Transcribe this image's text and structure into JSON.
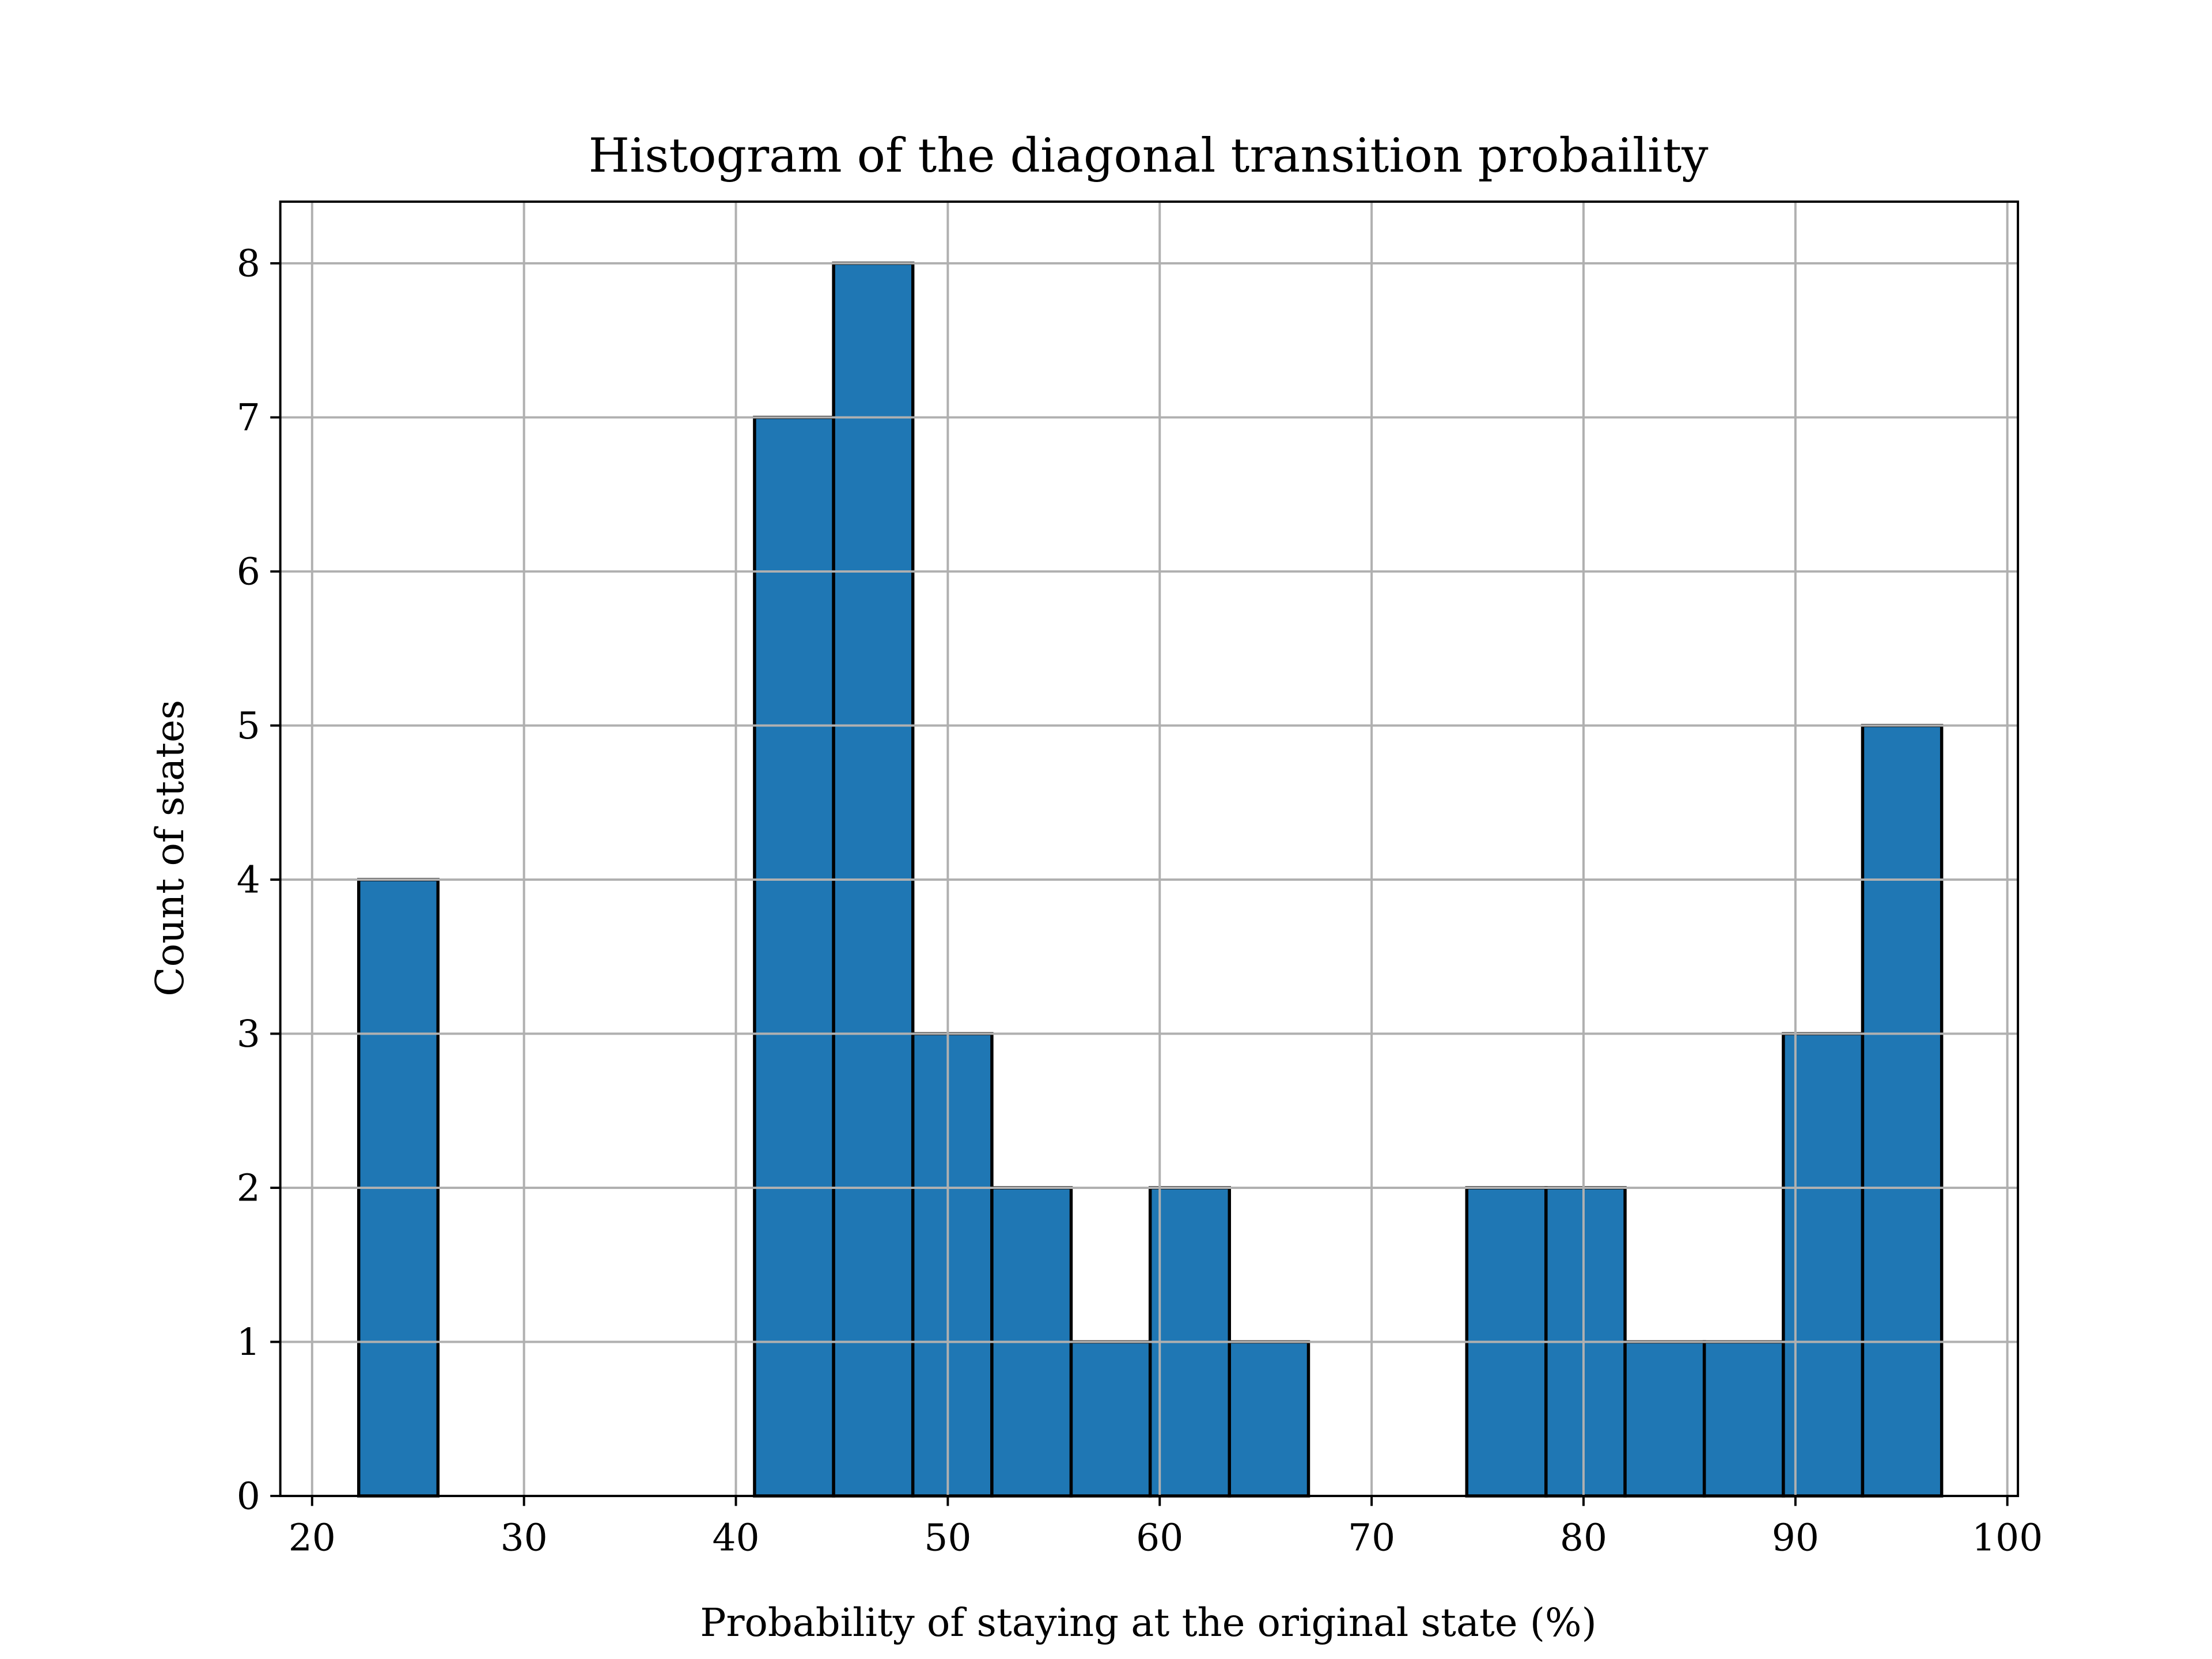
{
  "chart_data": {
    "type": "bar",
    "title": "Histogram of the diagonal transition probaility",
    "xlabel": "Probability of staying at the original state (%)",
    "ylabel": "Count of states",
    "xlim": [
      18.5,
      100.5
    ],
    "ylim": [
      0,
      8.4
    ],
    "grid": true,
    "bin_edges": [
      22.2,
      25.94,
      29.67,
      33.41,
      37.14,
      40.88,
      44.61,
      48.35,
      52.08,
      55.82,
      59.55,
      63.29,
      67.02,
      70.76,
      74.49,
      78.23,
      81.96,
      85.7,
      89.43,
      93.17,
      96.9
    ],
    "values": [
      4,
      0,
      0,
      0,
      0,
      7,
      8,
      3,
      2,
      1,
      2,
      1,
      0,
      0,
      2,
      2,
      1,
      1,
      3,
      5
    ],
    "xticks": [
      "20",
      "30",
      "40",
      "50",
      "60",
      "70",
      "80",
      "90",
      "100"
    ],
    "yticks": [
      "0",
      "1",
      "2",
      "3",
      "4",
      "5",
      "6",
      "7",
      "8"
    ],
    "colors": {
      "bar": "#1f77b4",
      "edge": "#000000",
      "grid": "#b0b0b0"
    }
  }
}
